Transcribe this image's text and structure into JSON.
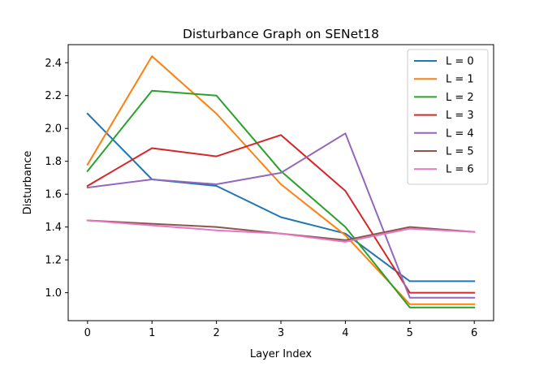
{
  "chart_data": {
    "type": "line",
    "title": "Disturbance Graph on SENet18",
    "xlabel": "Layer Index",
    "ylabel": "Disturbance",
    "x": [
      0,
      1,
      2,
      3,
      4,
      5,
      6
    ],
    "xticks": [
      "0",
      "1",
      "2",
      "3",
      "4",
      "5",
      "6"
    ],
    "yticks": [
      "1.0",
      "1.2",
      "1.4",
      "1.6",
      "1.8",
      "2.0",
      "2.2",
      "2.4"
    ],
    "xlim": [
      -0.3,
      6.3
    ],
    "ylim": [
      0.83,
      2.51
    ],
    "grid": false,
    "legend_position": "top-right",
    "series": [
      {
        "name": "L = 0",
        "color": "#1f77b4",
        "values": [
          2.09,
          1.69,
          1.65,
          1.46,
          1.36,
          1.07,
          1.07
        ]
      },
      {
        "name": "L = 1",
        "color": "#ff7f0e",
        "values": [
          1.78,
          2.44,
          2.09,
          1.66,
          1.35,
          0.93,
          0.93
        ]
      },
      {
        "name": "L = 2",
        "color": "#2ca02c",
        "values": [
          1.74,
          2.23,
          2.2,
          1.74,
          1.4,
          0.91,
          0.91
        ]
      },
      {
        "name": "L = 3",
        "color": "#d62728",
        "values": [
          1.65,
          1.88,
          1.83,
          1.96,
          1.62,
          1.0,
          1.0
        ]
      },
      {
        "name": "L = 4",
        "color": "#9467bd",
        "values": [
          1.64,
          1.69,
          1.66,
          1.73,
          1.97,
          0.97,
          0.97
        ]
      },
      {
        "name": "L = 5",
        "color": "#8c564b",
        "values": [
          1.44,
          1.42,
          1.4,
          1.36,
          1.32,
          1.4,
          1.37
        ]
      },
      {
        "name": "L = 6",
        "color": "#e377c2",
        "values": [
          1.44,
          1.41,
          1.38,
          1.36,
          1.31,
          1.39,
          1.37
        ]
      }
    ]
  }
}
